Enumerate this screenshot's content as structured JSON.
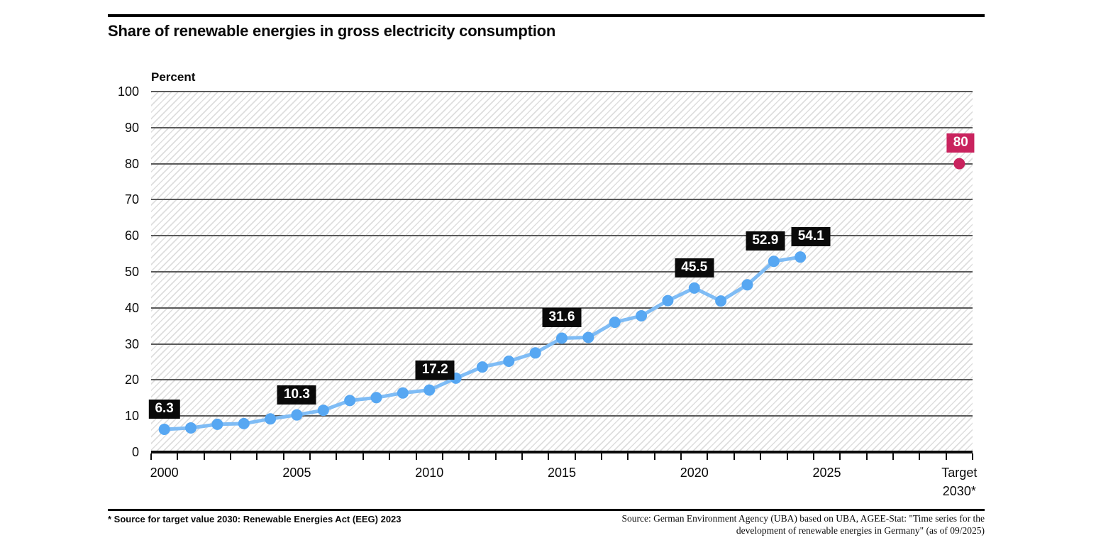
{
  "header": {
    "title": "Share of renewable energies in gross electricity consumption"
  },
  "axis": {
    "unit_label": "Percent"
  },
  "footer": {
    "note_left": "* Source for target value 2030: Renewable Energies Act (EEG) 2023",
    "source_right_line1": "Source: German Environment Agency (UBA) based on UBA, AGEE-Stat: \"Time series for the",
    "source_right_line2": "development of renewable energies in Germany\" (as of 09/2025)"
  },
  "colors": {
    "series_line": "#7fbcf5",
    "series_marker": "#57a7f2",
    "target": "#c9235e",
    "data_label_bg": "#0a0a0a",
    "data_label_text": "#ffffff",
    "gridline": "#5a5a5a",
    "hatch_line": "#dedede",
    "axis_line": "#0b0b0b"
  },
  "chart_data": {
    "type": "line",
    "title": "Share of renewable energies in gross electricity consumption",
    "ylabel": "Percent",
    "ylim": [
      0,
      100
    ],
    "ytick_interval": 10,
    "x_first_year": 2000,
    "x_last_slot_year": 2030,
    "grid": "horizontal-only",
    "plot_background": "diagonal-hatch",
    "legend": "none",
    "xtick_label_years": [
      2000,
      2005,
      2010,
      2015,
      2020,
      2025
    ],
    "xtick_labels": [
      "2000",
      "2005",
      "2010",
      "2015",
      "2020",
      "2025"
    ],
    "final_category_label_lines": [
      "Target",
      "2030*"
    ],
    "series": [
      {
        "name": "Share of renewable energies in gross electricity consumption (percent)",
        "x": [
          2000,
          2001,
          2002,
          2003,
          2004,
          2005,
          2006,
          2007,
          2008,
          2009,
          2010,
          2011,
          2012,
          2013,
          2014,
          2015,
          2016,
          2017,
          2018,
          2019,
          2020,
          2021,
          2022,
          2023,
          2024
        ],
        "values": [
          6.3,
          6.7,
          7.7,
          7.9,
          9.2,
          10.3,
          11.6,
          14.3,
          15.1,
          16.4,
          17.2,
          20.5,
          23.6,
          25.2,
          27.5,
          31.6,
          31.8,
          36.0,
          37.8,
          42.0,
          45.5,
          41.9,
          46.4,
          52.9,
          54.1
        ]
      }
    ],
    "target_point": {
      "x_label": "Target 2030*",
      "year": 2030,
      "value": 80,
      "label": "80"
    },
    "data_labels": [
      {
        "year": 2000,
        "text": "6.3"
      },
      {
        "year": 2005,
        "text": "10.3"
      },
      {
        "year": 2010,
        "text": "17.2"
      },
      {
        "year": 2015,
        "text": "31.6"
      },
      {
        "year": 2020,
        "text": "45.5"
      },
      {
        "year": 2023,
        "text": "52.9"
      },
      {
        "year": 2024,
        "text": "54.1"
      }
    ]
  }
}
